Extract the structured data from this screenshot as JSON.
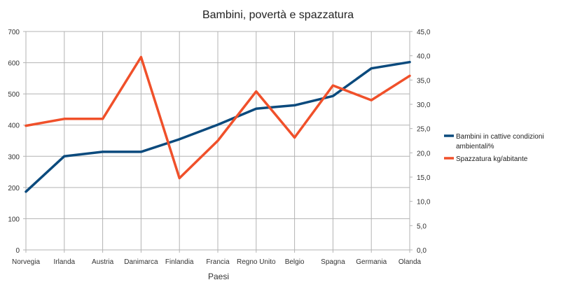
{
  "chart_data": {
    "type": "line",
    "title": "Bambini, povertà e spazzatura",
    "xlabel": "Paesi",
    "categories": [
      "Norvegia",
      "Irlanda",
      "Austria",
      "Danimarca",
      "Finlandia",
      "Francia",
      "Regno Unito",
      "Belgio",
      "Spagna",
      "Germania",
      "Olanda"
    ],
    "y_left": {
      "ylim": [
        0,
        700
      ],
      "ticks": [
        "0",
        "100",
        "200",
        "300",
        "400",
        "500",
        "600",
        "700"
      ]
    },
    "y_right": {
      "ylim": [
        0,
        45
      ],
      "ticks": [
        "0,0",
        "5,0",
        "10,0",
        "15,0",
        "20,0",
        "25,0",
        "30,0",
        "35,0",
        "40,0",
        "45,0"
      ]
    },
    "grid": true,
    "legend_position": "right",
    "series": [
      {
        "name": "Bambini in cattive condizioni ambientali%",
        "legend_lines": [
          "Bambini in cattive condizioni",
          "ambientali%"
        ],
        "axis": "right",
        "color": "#0b4a7d",
        "values": [
          12.0,
          19.3,
          20.2,
          20.2,
          22.8,
          25.8,
          29.1,
          29.8,
          31.7,
          37.4,
          38.7
        ]
      },
      {
        "name": "Spazzatura kg/abitante",
        "legend_lines": [
          "Spazzatura kg/abitante"
        ],
        "axis": "left",
        "color": "#f0502a",
        "values": [
          398,
          420,
          420,
          618,
          230,
          350,
          508,
          360,
          527,
          480,
          558
        ]
      }
    ]
  }
}
